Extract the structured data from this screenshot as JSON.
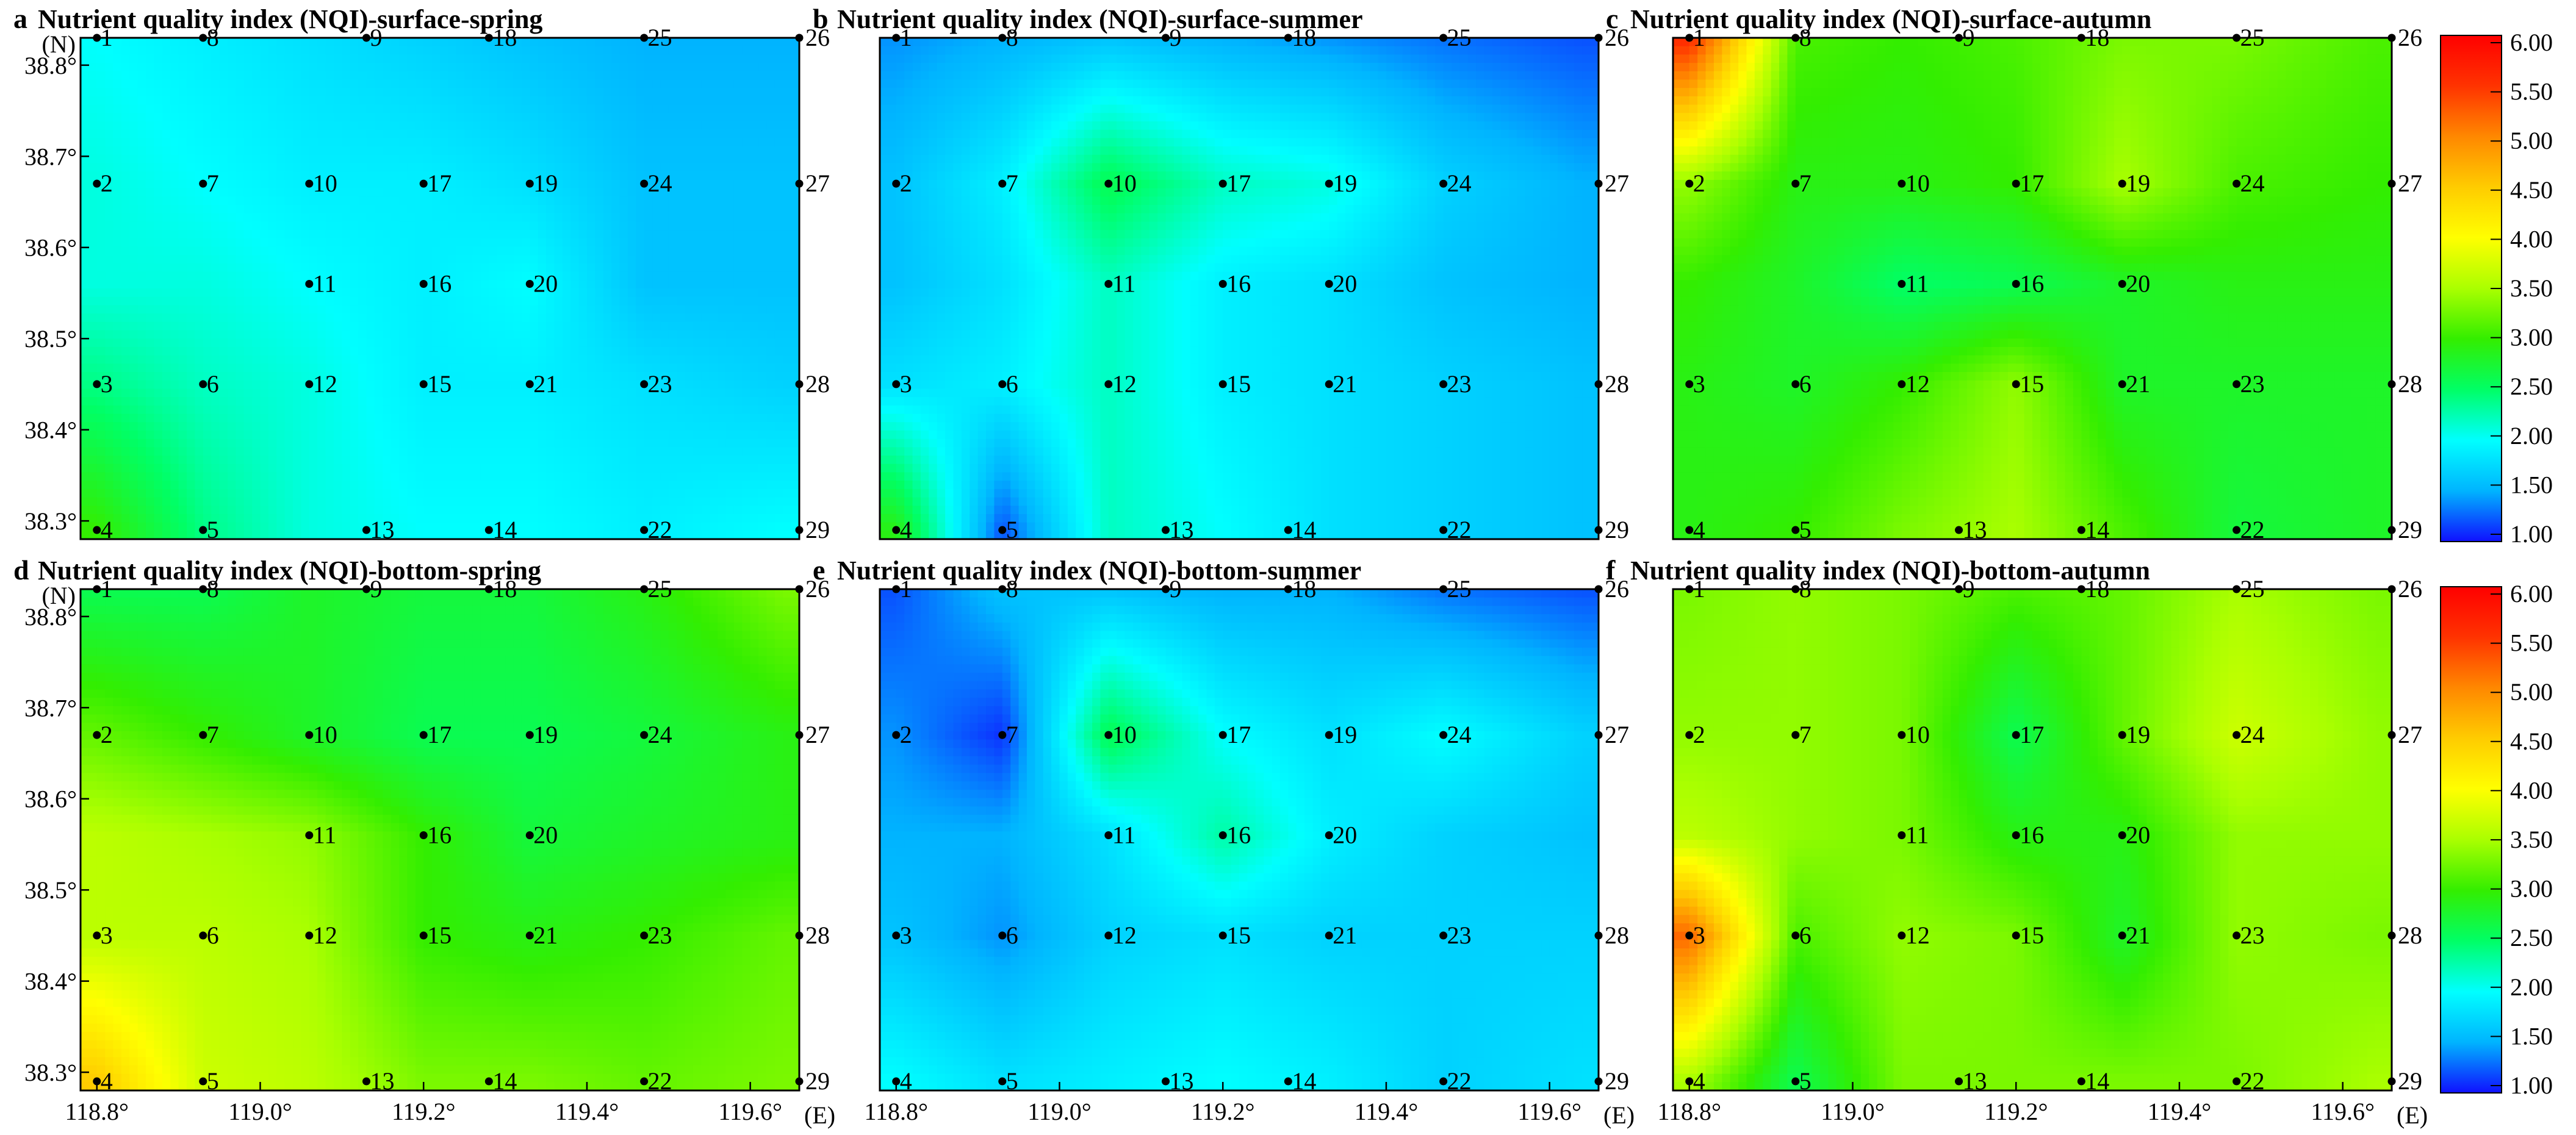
{
  "figure": {
    "x_axis_unit": "(E)",
    "y_axis_unit": "(N)",
    "x_ticks": [
      118.8,
      119.0,
      119.2,
      119.4,
      119.6
    ],
    "x_tick_labels": [
      "118.8°",
      "119.0°",
      "119.2°",
      "119.4°",
      "119.6°"
    ],
    "y_ticks": [
      38.3,
      38.4,
      38.5,
      38.6,
      38.7,
      38.8
    ],
    "y_tick_labels": [
      "38.3°",
      "38.4°",
      "38.5°",
      "38.6°",
      "38.7°",
      "38.8°"
    ]
  },
  "chart_data": [
    {
      "type": "heatmap",
      "panel": "a",
      "title": "Nutrient quality index (NQI)-surface-spring",
      "xlim": [
        118.78,
        119.66
      ],
      "ylim": [
        38.28,
        38.83
      ],
      "grid_x": [
        118.8,
        118.93,
        119.06,
        119.2,
        119.33,
        119.47,
        119.64
      ],
      "grid_y": [
        38.83,
        38.67,
        38.56,
        38.45,
        38.29
      ],
      "values": [
        [
          2.0,
          1.9,
          1.8,
          1.7,
          1.6,
          1.5,
          1.5
        ],
        [
          2.1,
          2.0,
          1.9,
          1.9,
          1.8,
          1.6,
          1.6
        ],
        [
          2.1,
          2.1,
          2.0,
          1.9,
          2.0,
          1.6,
          1.6
        ],
        [
          2.4,
          2.2,
          2.1,
          1.9,
          1.9,
          1.8,
          1.7
        ],
        [
          3.0,
          2.4,
          2.1,
          2.0,
          2.0,
          1.9,
          2.0
        ]
      ]
    },
    {
      "type": "heatmap",
      "panel": "b",
      "title": "Nutrient quality index (NQI)-surface-summer",
      "xlim": [
        118.78,
        119.66
      ],
      "ylim": [
        38.28,
        38.83
      ],
      "grid_x": [
        118.8,
        118.93,
        119.06,
        119.2,
        119.33,
        119.47,
        119.64
      ],
      "grid_y": [
        38.83,
        38.67,
        38.56,
        38.45,
        38.29
      ],
      "values": [
        [
          1.4,
          1.5,
          1.6,
          1.5,
          1.4,
          1.3,
          1.2
        ],
        [
          1.6,
          1.9,
          2.6,
          2.2,
          2.1,
          1.7,
          1.5
        ],
        [
          1.6,
          1.8,
          2.2,
          1.9,
          1.8,
          1.6,
          1.5
        ],
        [
          1.8,
          1.9,
          2.2,
          1.9,
          1.8,
          1.7,
          1.6
        ],
        [
          2.9,
          1.2,
          2.2,
          2.0,
          1.8,
          1.7,
          1.6
        ]
      ]
    },
    {
      "type": "heatmap",
      "panel": "c",
      "title": "Nutrient quality index (NQI)-surface-autumn",
      "xlim": [
        118.78,
        119.66
      ],
      "ylim": [
        38.28,
        38.83
      ],
      "grid_x": [
        118.8,
        118.93,
        119.06,
        119.2,
        119.33,
        119.47,
        119.64
      ],
      "grid_y": [
        38.83,
        38.67,
        38.56,
        38.45,
        38.29
      ],
      "values": [
        [
          5.6,
          3.1,
          3.0,
          3.1,
          3.3,
          3.3,
          3.1
        ],
        [
          3.4,
          2.9,
          2.9,
          3.0,
          3.5,
          3.1,
          3.0
        ],
        [
          3.0,
          2.8,
          2.5,
          2.6,
          2.8,
          2.9,
          2.9
        ],
        [
          2.9,
          2.8,
          3.0,
          3.4,
          2.8,
          2.8,
          2.8
        ],
        [
          2.9,
          3.0,
          3.3,
          3.5,
          3.1,
          2.7,
          2.8
        ]
      ]
    },
    {
      "type": "heatmap",
      "panel": "d",
      "title": "Nutrient quality index (NQI)-bottom-spring",
      "xlim": [
        118.78,
        119.66
      ],
      "ylim": [
        38.28,
        38.83
      ],
      "grid_x": [
        118.8,
        118.93,
        119.06,
        119.2,
        119.33,
        119.47,
        119.64
      ],
      "grid_y": [
        38.83,
        38.67,
        38.56,
        38.45,
        38.29
      ],
      "values": [
        [
          2.6,
          2.6,
          2.8,
          2.7,
          2.7,
          2.9,
          3.3
        ],
        [
          3.2,
          3.0,
          2.8,
          2.6,
          2.6,
          2.7,
          2.9
        ],
        [
          3.6,
          3.5,
          3.4,
          3.0,
          2.7,
          2.8,
          2.9
        ],
        [
          3.6,
          3.6,
          3.5,
          3.0,
          2.9,
          3.0,
          3.2
        ],
        [
          4.5,
          3.7,
          3.6,
          3.3,
          3.3,
          3.2,
          3.3
        ]
      ]
    },
    {
      "type": "heatmap",
      "panel": "e",
      "title": "Nutrient quality index (NQI)-bottom-summer",
      "xlim": [
        118.78,
        119.66
      ],
      "ylim": [
        38.28,
        38.83
      ],
      "grid_x": [
        118.8,
        118.93,
        119.06,
        119.2,
        119.33,
        119.47,
        119.64
      ],
      "grid_y": [
        38.83,
        38.67,
        38.56,
        38.45,
        38.29
      ],
      "values": [
        [
          1.2,
          1.6,
          1.6,
          1.5,
          1.5,
          1.3,
          1.2
        ],
        [
          1.4,
          1.1,
          2.6,
          2.0,
          1.8,
          2.0,
          1.7
        ],
        [
          1.5,
          1.5,
          1.8,
          2.3,
          1.9,
          1.7,
          1.6
        ],
        [
          1.6,
          1.4,
          1.7,
          1.8,
          1.7,
          1.7,
          1.7
        ],
        [
          2.0,
          1.8,
          1.9,
          2.0,
          1.9,
          1.7,
          1.8
        ]
      ]
    },
    {
      "type": "heatmap",
      "panel": "f",
      "title": "Nutrient quality index (NQI)-bottom-autumn",
      "xlim": [
        118.78,
        119.66
      ],
      "ylim": [
        38.28,
        38.83
      ],
      "grid_x": [
        118.8,
        118.93,
        119.06,
        119.2,
        119.33,
        119.47,
        119.64
      ],
      "grid_y": [
        38.83,
        38.67,
        38.56,
        38.45,
        38.29
      ],
      "values": [
        [
          3.3,
          3.4,
          3.3,
          3.1,
          3.2,
          3.5,
          3.3
        ],
        [
          3.4,
          3.4,
          3.3,
          2.6,
          3.2,
          3.7,
          3.4
        ],
        [
          3.6,
          3.4,
          3.3,
          2.9,
          2.9,
          3.4,
          3.4
        ],
        [
          5.2,
          3.1,
          3.4,
          3.3,
          2.8,
          3.4,
          3.3
        ],
        [
          3.5,
          2.6,
          3.3,
          3.3,
          3.3,
          3.3,
          3.5
        ]
      ]
    }
  ],
  "colorbar": {
    "ticks": [
      "1.00",
      "1.50",
      "2.00",
      "2.50",
      "3.00",
      "3.50",
      "4.00",
      "4.50",
      "5.00",
      "5.50",
      "6.00"
    ],
    "min": 1.0,
    "max": 6.0,
    "colors": [
      "#1010ff",
      "#00b4ff",
      "#00ffff",
      "#00ff66",
      "#33ee00",
      "#aaff00",
      "#ffff00",
      "#ffcc00",
      "#ff8800",
      "#ff3300",
      "#ff0000"
    ]
  },
  "stations": [
    {
      "label": "1",
      "lon": 118.8,
      "lat": 38.83
    },
    {
      "label": "2",
      "lon": 118.8,
      "lat": 38.67
    },
    {
      "label": "3",
      "lon": 118.8,
      "lat": 38.45
    },
    {
      "label": "4",
      "lon": 118.8,
      "lat": 38.29
    },
    {
      "label": "5",
      "lon": 118.93,
      "lat": 38.29
    },
    {
      "label": "6",
      "lon": 118.93,
      "lat": 38.45
    },
    {
      "label": "7",
      "lon": 118.93,
      "lat": 38.67
    },
    {
      "label": "8",
      "lon": 118.93,
      "lat": 38.83
    },
    {
      "label": "9",
      "lon": 119.13,
      "lat": 38.83
    },
    {
      "label": "10",
      "lon": 119.06,
      "lat": 38.67
    },
    {
      "label": "11",
      "lon": 119.06,
      "lat": 38.56
    },
    {
      "label": "12",
      "lon": 119.06,
      "lat": 38.45
    },
    {
      "label": "13",
      "lon": 119.13,
      "lat": 38.29
    },
    {
      "label": "14",
      "lon": 119.28,
      "lat": 38.29
    },
    {
      "label": "15",
      "lon": 119.2,
      "lat": 38.45
    },
    {
      "label": "16",
      "lon": 119.2,
      "lat": 38.56
    },
    {
      "label": "17",
      "lon": 119.2,
      "lat": 38.67
    },
    {
      "label": "18",
      "lon": 119.28,
      "lat": 38.83
    },
    {
      "label": "19",
      "lon": 119.33,
      "lat": 38.67
    },
    {
      "label": "20",
      "lon": 119.33,
      "lat": 38.56
    },
    {
      "label": "21",
      "lon": 119.33,
      "lat": 38.45
    },
    {
      "label": "22",
      "lon": 119.47,
      "lat": 38.29
    },
    {
      "label": "23",
      "lon": 119.47,
      "lat": 38.45
    },
    {
      "label": "24",
      "lon": 119.47,
      "lat": 38.67
    },
    {
      "label": "25",
      "lon": 119.47,
      "lat": 38.83
    },
    {
      "label": "26",
      "lon": 119.66,
      "lat": 38.83
    },
    {
      "label": "27",
      "lon": 119.66,
      "lat": 38.67
    },
    {
      "label": "28",
      "lon": 119.66,
      "lat": 38.45
    },
    {
      "label": "29",
      "lon": 119.66,
      "lat": 38.29
    }
  ]
}
